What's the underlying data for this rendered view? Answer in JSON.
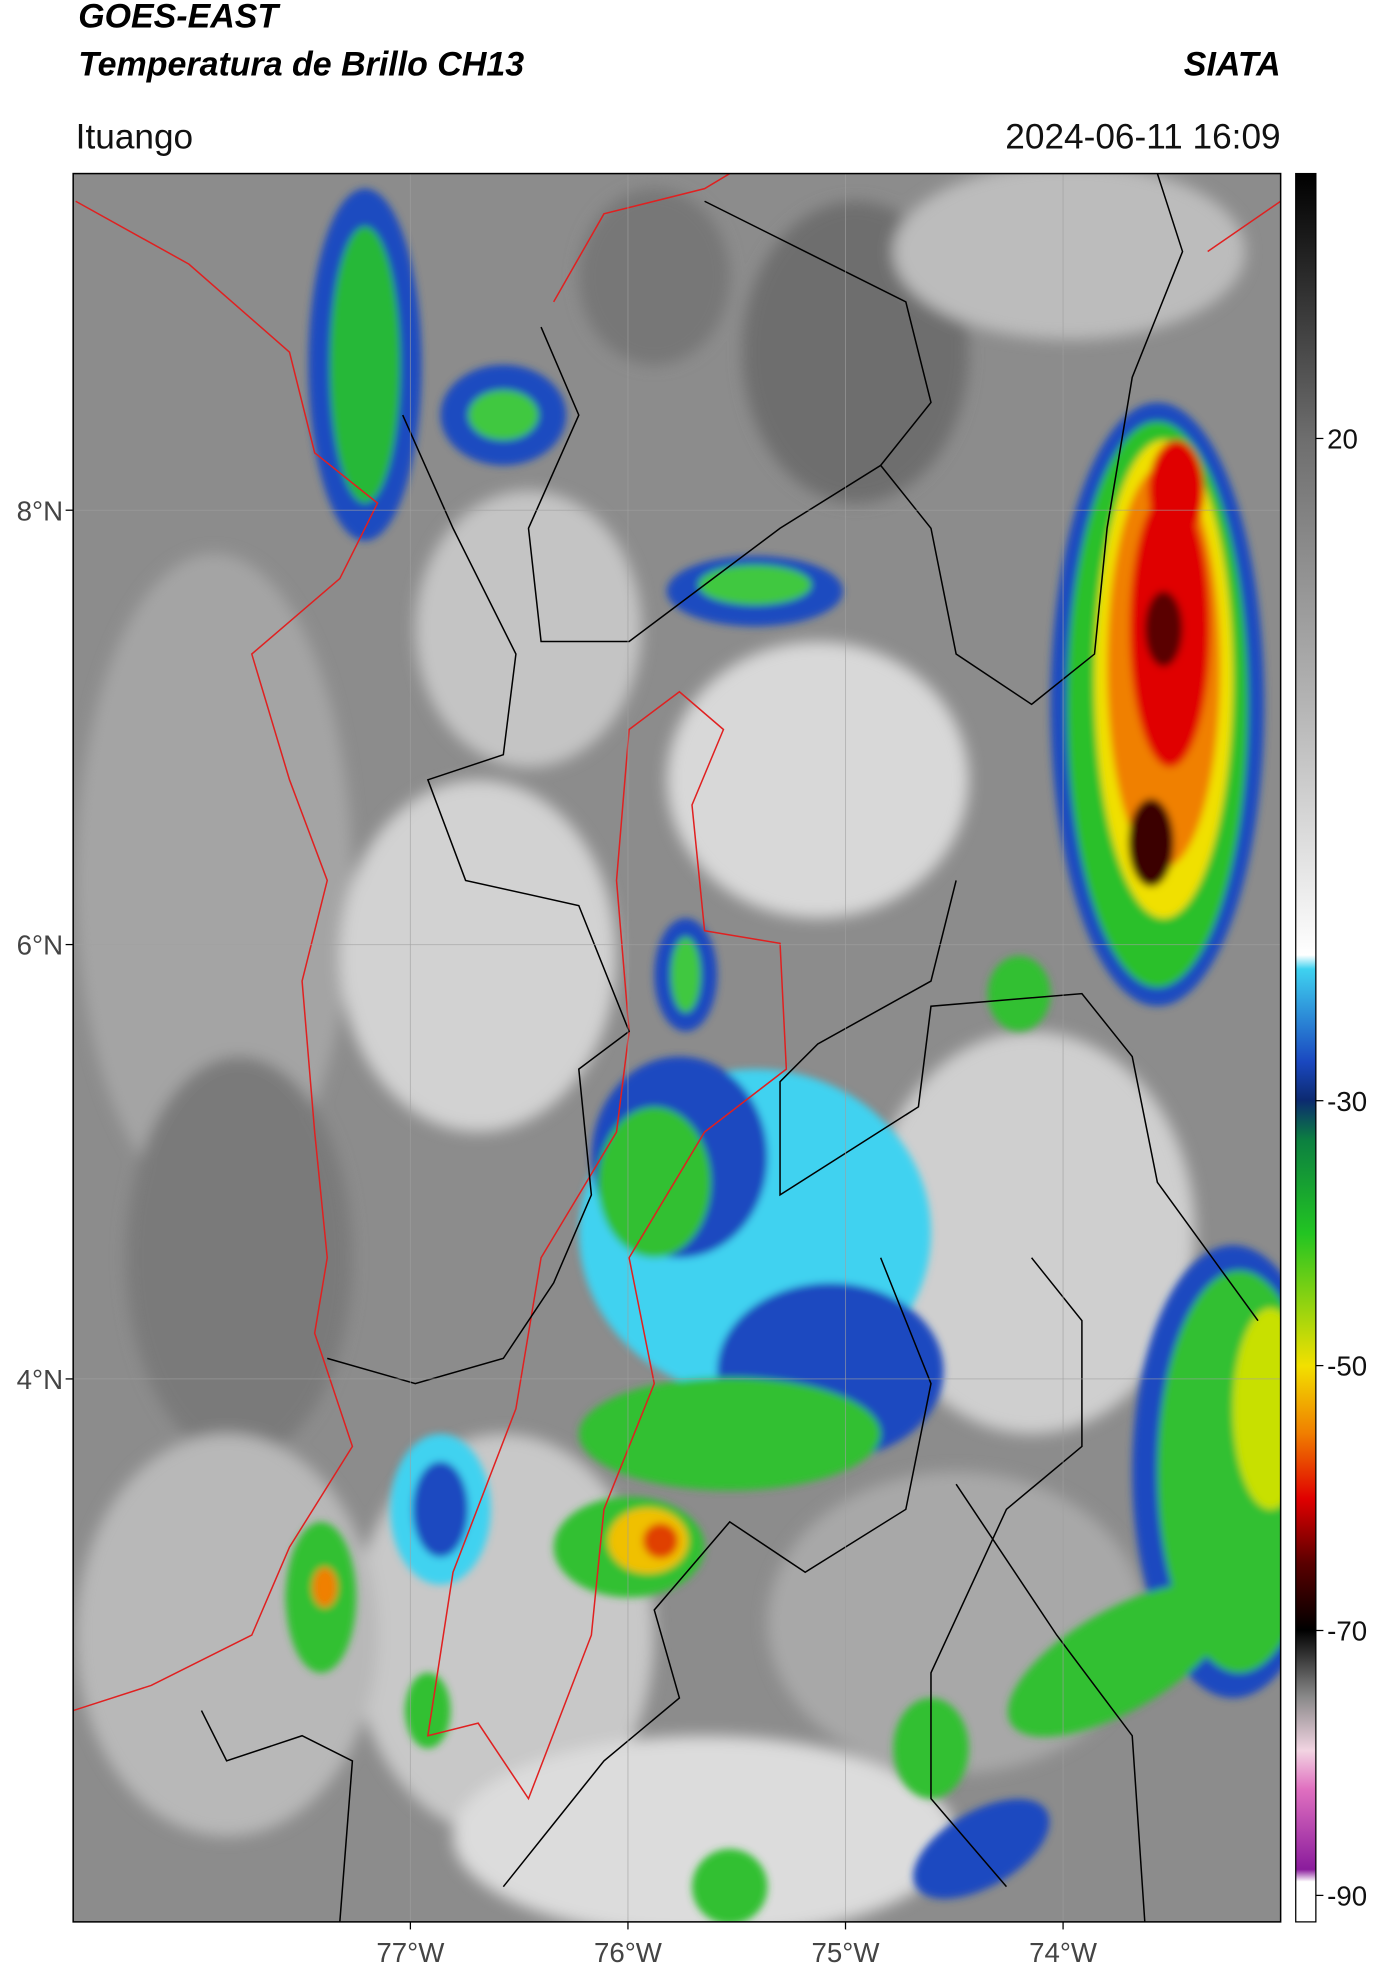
{
  "header": {
    "title_line1": "GOES-EAST",
    "title_line2": "Temperatura de Brillo CH13",
    "brand": "SIATA",
    "location": "Ituango",
    "datetime": "2024-06-11 16:09"
  },
  "map": {
    "type": "map",
    "xlim": [
      -78.55,
      -73
    ],
    "ylim": [
      1.5,
      9.55
    ],
    "xticks": [
      {
        "value": -77,
        "label": "77°W"
      },
      {
        "value": -76,
        "label": "76°W"
      },
      {
        "value": -75,
        "label": "75°W"
      },
      {
        "value": -74,
        "label": "74°W"
      }
    ],
    "yticks": [
      {
        "value": 8,
        "label": "8°N"
      },
      {
        "value": 6,
        "label": "6°N"
      },
      {
        "value": 4,
        "label": "4°N"
      }
    ],
    "grid": true
  },
  "colorbar": {
    "clim": [
      -92,
      40
    ],
    "ticks": [
      20,
      -30,
      -50,
      -70,
      -90
    ]
  }
}
